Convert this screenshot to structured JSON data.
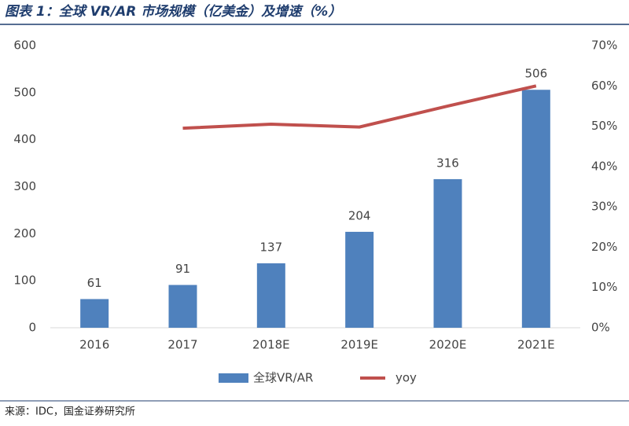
{
  "chart_data": {
    "type": "bar",
    "title": "图表 1：全球 VR/AR 市场规模（亿美金）及增速（%）",
    "source": "来源：IDC，国金证券研究所",
    "categories": [
      "2016",
      "2017",
      "2018E",
      "2019E",
      "2020E",
      "2021E"
    ],
    "series": [
      {
        "name": "全球VR/AR",
        "type": "bar",
        "color": "#4f81bd",
        "values": [
          61,
          91,
          137,
          204,
          316,
          506
        ]
      },
      {
        "name": "yoy",
        "type": "line",
        "axis": "y2",
        "color": "#c0504d",
        "values": [
          null,
          49.5,
          50.5,
          49.8,
          55,
          60
        ]
      }
    ],
    "ylim": [
      0,
      600
    ],
    "yticks": [
      0,
      100,
      200,
      300,
      400,
      500,
      600
    ],
    "y2lim": [
      0,
      70
    ],
    "y2ticks": [
      {
        "value": 0,
        "label": "0%"
      },
      {
        "value": 10,
        "label": "10%"
      },
      {
        "value": 20,
        "label": "20%"
      },
      {
        "value": 30,
        "label": "30%"
      },
      {
        "value": 40,
        "label": "40%"
      },
      {
        "value": 50,
        "label": "50%"
      },
      {
        "value": 60,
        "label": "60%"
      },
      {
        "value": 70,
        "label": "70%"
      }
    ],
    "legend": "bottom"
  }
}
